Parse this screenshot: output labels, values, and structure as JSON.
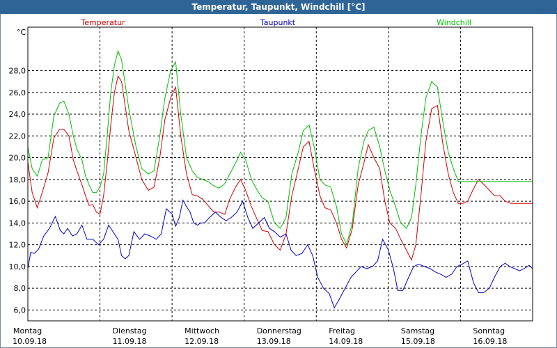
{
  "window": {
    "title": "Temperatur, Taupunkt, Windchill [°C]"
  },
  "chart_data": {
    "type": "line",
    "title": "Temperatur, Taupunkt, Windchill [°C]",
    "ylabel": "°C",
    "ylim": [
      5,
      32
    ],
    "xlim": [
      0,
      7
    ],
    "grid": true,
    "yticks": [
      "6,0",
      "8,0",
      "10,0",
      "12,0",
      "14,0",
      "16,0",
      "18,0",
      "20,0",
      "22,0",
      "24,0",
      "26,0",
      "28,0"
    ],
    "ytick_values": [
      6,
      8,
      10,
      12,
      14,
      16,
      18,
      20,
      22,
      24,
      26,
      28
    ],
    "days": [
      {
        "weekday": "Montag",
        "date": "10.09.18"
      },
      {
        "weekday": "Dienstag",
        "date": "11.09.18"
      },
      {
        "weekday": "Mittwoch",
        "date": "12.09.18"
      },
      {
        "weekday": "Donnerstag",
        "date": "13.09.18"
      },
      {
        "weekday": "Freitag",
        "date": "14.09.18"
      },
      {
        "weekday": "Samstag",
        "date": "15.09.18"
      },
      {
        "weekday": "Sonntag",
        "date": "16.09.18"
      }
    ],
    "series": [
      {
        "name": "Temperatur",
        "color": "#d40000",
        "x": [
          0,
          0.06,
          0.13,
          0.2,
          0.28,
          0.36,
          0.44,
          0.5,
          0.57,
          0.63,
          0.68,
          0.75,
          0.8,
          0.85,
          0.9,
          0.95,
          1.0,
          1.05,
          1.1,
          1.15,
          1.2,
          1.25,
          1.3,
          1.4,
          1.5,
          1.58,
          1.67,
          1.75,
          1.83,
          1.9,
          1.98,
          2.05,
          2.12,
          2.2,
          2.28,
          2.35,
          2.42,
          2.5,
          2.58,
          2.65,
          2.73,
          2.8,
          2.88,
          2.95,
          3.02,
          3.1,
          3.18,
          3.25,
          3.33,
          3.42,
          3.5,
          3.58,
          3.66,
          3.75,
          3.82,
          3.9,
          3.97,
          4.05,
          4.12,
          4.2,
          4.28,
          4.35,
          4.42,
          4.5,
          4.58,
          4.66,
          4.72,
          4.8,
          4.88,
          4.95,
          5.02,
          5.1,
          5.17,
          5.25,
          5.32,
          5.38,
          5.45,
          5.52,
          5.6,
          5.68,
          5.75,
          5.83,
          5.9,
          5.97,
          6.03,
          6.1,
          6.17,
          6.25,
          6.33,
          6.4,
          6.47,
          6.55,
          6.62,
          6.7,
          6.78,
          6.85,
          6.9,
          6.95,
          7.0
        ],
        "y": [
          19.6,
          16.8,
          15.4,
          16.8,
          18.6,
          21.8,
          22.6,
          22.6,
          22.0,
          19.8,
          18.8,
          17.5,
          16.5,
          15.6,
          15.7,
          15.0,
          14.8,
          16.5,
          19.5,
          23.0,
          26.0,
          27.5,
          27.0,
          22.5,
          20.0,
          18.0,
          17.0,
          17.3,
          20.0,
          23.5,
          25.5,
          26.5,
          22.0,
          18.5,
          16.6,
          16.5,
          16.2,
          15.6,
          15.0,
          15.0,
          14.8,
          16.2,
          17.3,
          18.0,
          17.0,
          15.5,
          14.3,
          13.3,
          13.2,
          12.0,
          11.5,
          13.0,
          16.5,
          19.0,
          21.0,
          21.5,
          19.0,
          16.5,
          15.4,
          15.2,
          14.0,
          12.5,
          11.7,
          13.5,
          17.5,
          19.5,
          21.2,
          20.0,
          19.0,
          16.0,
          14.0,
          13.5,
          12.5,
          11.5,
          10.6,
          12.0,
          16.5,
          21.5,
          24.5,
          24.8,
          21.5,
          18.5,
          16.8,
          15.8,
          15.8,
          16.0,
          17.0,
          18.0,
          17.5,
          17.0,
          16.5,
          16.5,
          16.0,
          15.8,
          15.8,
          15.8,
          15.8,
          15.8,
          15.8
        ]
      },
      {
        "name": "Taupunkt",
        "color": "#0000c8",
        "x": [
          0,
          0.04,
          0.09,
          0.15,
          0.22,
          0.3,
          0.38,
          0.45,
          0.5,
          0.55,
          0.62,
          0.68,
          0.75,
          0.82,
          0.9,
          0.98,
          1.05,
          1.12,
          1.2,
          1.25,
          1.3,
          1.35,
          1.4,
          1.47,
          1.55,
          1.62,
          1.7,
          1.78,
          1.85,
          1.92,
          2.0,
          2.05,
          2.1,
          2.15,
          2.2,
          2.25,
          2.3,
          2.35,
          2.4,
          2.45,
          2.52,
          2.6,
          2.68,
          2.75,
          2.82,
          2.9,
          2.98,
          3.05,
          3.12,
          3.2,
          3.28,
          3.35,
          3.42,
          3.5,
          3.58,
          3.65,
          3.72,
          3.8,
          3.88,
          3.95,
          4.02,
          4.1,
          4.18,
          4.25,
          4.32,
          4.4,
          4.48,
          4.55,
          4.62,
          4.7,
          4.78,
          4.85,
          4.92,
          5.0,
          5.07,
          5.13,
          5.2,
          5.28,
          5.35,
          5.42,
          5.5,
          5.58,
          5.65,
          5.72,
          5.8,
          5.88,
          5.95,
          6.02,
          6.1,
          6.18,
          6.25,
          6.32,
          6.4,
          6.47,
          6.55,
          6.62,
          6.68,
          6.75,
          6.82,
          6.88,
          6.95,
          7.0
        ],
        "y": [
          9.8,
          11.3,
          11.2,
          11.6,
          12.8,
          13.5,
          14.6,
          13.3,
          13.0,
          13.5,
          12.8,
          13.0,
          13.8,
          12.5,
          12.5,
          12.0,
          12.5,
          13.8,
          13.0,
          12.5,
          11.0,
          10.7,
          11.0,
          13.2,
          12.5,
          13.0,
          12.8,
          12.5,
          13.0,
          15.3,
          14.8,
          13.7,
          14.5,
          16.1,
          15.5,
          15.0,
          14.0,
          13.8,
          14.0,
          14.0,
          14.5,
          15.0,
          14.5,
          14.2,
          14.5,
          15.0,
          16.0,
          14.5,
          13.5,
          14.0,
          14.5,
          13.5,
          13.2,
          12.7,
          13.0,
          11.5,
          11.0,
          11.2,
          12.0,
          11.0,
          9.0,
          8.0,
          7.5,
          6.2,
          7.0,
          8.0,
          9.0,
          9.5,
          10.0,
          9.8,
          10.0,
          10.5,
          12.5,
          11.5,
          9.8,
          7.8,
          7.8,
          9.0,
          10.0,
          10.2,
          10.0,
          9.8,
          9.5,
          9.3,
          9.0,
          9.3,
          10.0,
          10.2,
          10.5,
          8.5,
          7.6,
          7.6,
          8.0,
          9.0,
          10.0,
          10.3,
          10.0,
          9.8,
          9.6,
          9.8,
          10.1,
          9.8
        ]
      },
      {
        "name": "Windchill",
        "color": "#00c000",
        "x": [
          0,
          0.06,
          0.13,
          0.2,
          0.28,
          0.36,
          0.44,
          0.5,
          0.57,
          0.63,
          0.68,
          0.75,
          0.8,
          0.85,
          0.9,
          0.95,
          1.0,
          1.05,
          1.1,
          1.15,
          1.2,
          1.25,
          1.3,
          1.4,
          1.5,
          1.58,
          1.67,
          1.75,
          1.83,
          1.9,
          1.98,
          2.05,
          2.12,
          2.2,
          2.28,
          2.35,
          2.42,
          2.5,
          2.58,
          2.65,
          2.73,
          2.8,
          2.88,
          2.95,
          3.02,
          3.1,
          3.18,
          3.25,
          3.33,
          3.42,
          3.5,
          3.58,
          3.66,
          3.75,
          3.82,
          3.9,
          3.97,
          4.05,
          4.12,
          4.2,
          4.28,
          4.35,
          4.42,
          4.5,
          4.58,
          4.66,
          4.72,
          4.8,
          4.88,
          4.95,
          5.02,
          5.1,
          5.17,
          5.25,
          5.32,
          5.38,
          5.45,
          5.52,
          5.6,
          5.68,
          5.75,
          5.83,
          5.9,
          5.97,
          6.03,
          6.1,
          6.17,
          6.25,
          6.33,
          6.4,
          6.47,
          6.55,
          6.62,
          6.7,
          6.78,
          6.85,
          6.9,
          6.95,
          7.0
        ],
        "y": [
          21.0,
          19.0,
          18.3,
          19.8,
          20.0,
          23.8,
          25.0,
          25.2,
          24.0,
          22.0,
          20.8,
          19.8,
          18.3,
          17.5,
          16.8,
          16.8,
          17.3,
          18.5,
          22.0,
          26.0,
          28.5,
          29.8,
          29.0,
          24.5,
          21.0,
          19.0,
          18.5,
          18.8,
          22.0,
          25.5,
          28.0,
          28.8,
          24.0,
          20.0,
          18.8,
          18.2,
          18.0,
          17.8,
          17.4,
          17.2,
          17.6,
          18.5,
          19.5,
          20.5,
          19.8,
          18.0,
          17.0,
          16.3,
          16.0,
          14.0,
          13.5,
          14.5,
          18.5,
          20.5,
          22.5,
          23.0,
          21.0,
          18.0,
          17.5,
          17.3,
          15.5,
          13.0,
          12.0,
          14.0,
          19.0,
          21.5,
          22.5,
          22.8,
          21.0,
          18.8,
          17.0,
          15.5,
          14.0,
          13.5,
          14.5,
          17.5,
          22.0,
          25.5,
          27.0,
          26.5,
          23.5,
          20.5,
          19.0,
          17.8,
          17.8,
          17.8,
          17.8,
          17.8,
          17.8,
          17.8,
          17.8,
          17.8,
          17.8,
          17.8,
          17.8,
          17.8,
          17.8,
          17.8,
          17.8
        ]
      }
    ]
  }
}
